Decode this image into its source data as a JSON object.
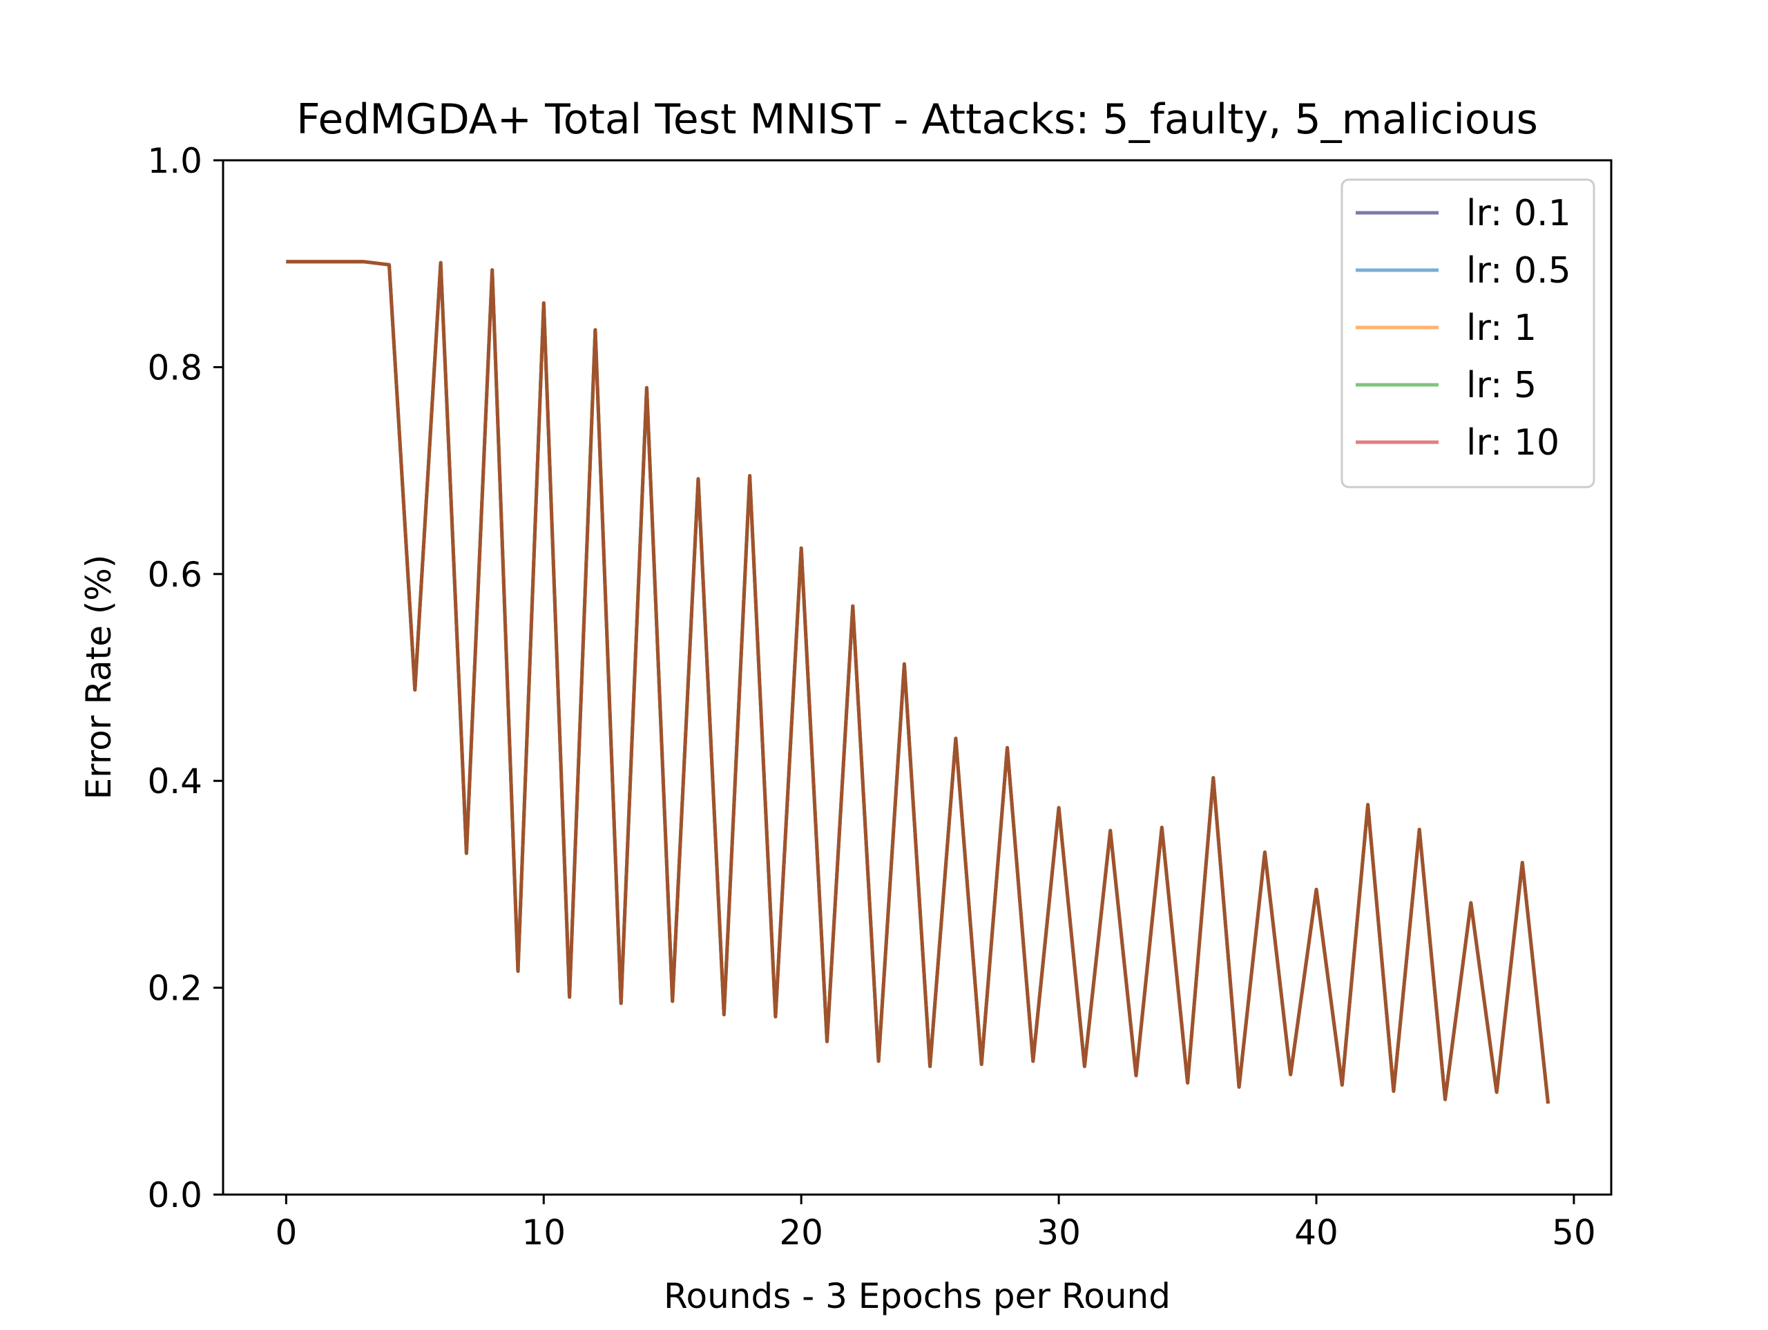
{
  "chart_data": {
    "type": "line",
    "title": "FedMGDA+ Total Test MNIST - Attacks: 5_faulty, 5_malicious",
    "xlabel": "Rounds - 3 Epochs per Round",
    "ylabel": "Error Rate (%)",
    "xlim": [
      -2.45,
      51.45
    ],
    "ylim": [
      0.0,
      1.0
    ],
    "xticks": [
      0,
      10,
      20,
      30,
      40,
      50
    ],
    "xtick_labels": [
      "0",
      "10",
      "20",
      "30",
      "40",
      "50"
    ],
    "yticks": [
      0.0,
      0.2,
      0.4,
      0.6,
      0.8,
      1.0
    ],
    "ytick_labels": [
      "0.0",
      "0.2",
      "0.4",
      "0.6",
      "0.8",
      "1.0"
    ],
    "grid": false,
    "legend_position": "top-right",
    "x": [
      0,
      1,
      2,
      3,
      4,
      5,
      6,
      7,
      8,
      9,
      10,
      11,
      12,
      13,
      14,
      15,
      16,
      17,
      18,
      19,
      20,
      21,
      22,
      23,
      24,
      25,
      26,
      27,
      28,
      29,
      30,
      31,
      32,
      33,
      34,
      35,
      36,
      37,
      38,
      39,
      40,
      41,
      42,
      43,
      44,
      45,
      46,
      47,
      48,
      49
    ],
    "series": [
      {
        "name": "lr: 0.1",
        "color": "#7b7ba8",
        "values": [
          0.902,
          0.902,
          0.902,
          0.902,
          0.899,
          0.488,
          0.901,
          0.33,
          0.894,
          0.216,
          0.862,
          0.191,
          0.836,
          0.185,
          0.78,
          0.187,
          0.692,
          0.174,
          0.695,
          0.172,
          0.625,
          0.148,
          0.569,
          0.129,
          0.513,
          0.124,
          0.441,
          0.126,
          0.432,
          0.129,
          0.374,
          0.124,
          0.352,
          0.115,
          0.355,
          0.108,
          0.403,
          0.104,
          0.331,
          0.116,
          0.295,
          0.106,
          0.377,
          0.1,
          0.353,
          0.092,
          0.282,
          0.099,
          0.321,
          0.088
        ]
      },
      {
        "name": "lr: 0.5",
        "color": "#78aed4",
        "values": [
          0.902,
          0.902,
          0.902,
          0.902,
          0.899,
          0.488,
          0.901,
          0.33,
          0.894,
          0.216,
          0.862,
          0.191,
          0.836,
          0.185,
          0.78,
          0.187,
          0.692,
          0.174,
          0.695,
          0.172,
          0.625,
          0.148,
          0.569,
          0.129,
          0.513,
          0.124,
          0.441,
          0.126,
          0.432,
          0.129,
          0.374,
          0.124,
          0.352,
          0.115,
          0.355,
          0.108,
          0.403,
          0.104,
          0.331,
          0.116,
          0.295,
          0.106,
          0.377,
          0.1,
          0.353,
          0.092,
          0.282,
          0.099,
          0.321,
          0.088
        ]
      },
      {
        "name": "lr: 1",
        "color": "#ffb26e",
        "values": [
          0.902,
          0.902,
          0.902,
          0.902,
          0.899,
          0.488,
          0.901,
          0.33,
          0.894,
          0.216,
          0.862,
          0.191,
          0.836,
          0.185,
          0.78,
          0.187,
          0.692,
          0.174,
          0.695,
          0.172,
          0.625,
          0.148,
          0.569,
          0.129,
          0.513,
          0.124,
          0.441,
          0.126,
          0.432,
          0.129,
          0.374,
          0.124,
          0.352,
          0.115,
          0.355,
          0.108,
          0.403,
          0.104,
          0.331,
          0.116,
          0.295,
          0.106,
          0.377,
          0.1,
          0.353,
          0.092,
          0.282,
          0.099,
          0.321,
          0.088
        ]
      },
      {
        "name": "lr: 5",
        "color": "#80c47c",
        "values": [
          0.902,
          0.902,
          0.902,
          0.902,
          0.899,
          0.488,
          0.901,
          0.33,
          0.894,
          0.216,
          0.862,
          0.191,
          0.836,
          0.185,
          0.78,
          0.187,
          0.692,
          0.174,
          0.695,
          0.172,
          0.625,
          0.148,
          0.569,
          0.129,
          0.513,
          0.124,
          0.441,
          0.126,
          0.432,
          0.129,
          0.374,
          0.124,
          0.352,
          0.115,
          0.355,
          0.108,
          0.403,
          0.104,
          0.331,
          0.116,
          0.295,
          0.106,
          0.377,
          0.1,
          0.353,
          0.092,
          0.282,
          0.099,
          0.321,
          0.088
        ]
      },
      {
        "name": "lr: 10",
        "color": "#e07f7f",
        "values": [
          0.902,
          0.902,
          0.902,
          0.902,
          0.899,
          0.488,
          0.901,
          0.33,
          0.894,
          0.216,
          0.862,
          0.191,
          0.836,
          0.185,
          0.78,
          0.187,
          0.692,
          0.174,
          0.695,
          0.172,
          0.625,
          0.148,
          0.569,
          0.129,
          0.513,
          0.124,
          0.441,
          0.126,
          0.432,
          0.129,
          0.374,
          0.124,
          0.352,
          0.115,
          0.355,
          0.108,
          0.403,
          0.104,
          0.331,
          0.116,
          0.295,
          0.106,
          0.377,
          0.1,
          0.353,
          0.092,
          0.282,
          0.099,
          0.321,
          0.088
        ]
      }
    ],
    "overlap_line_color": "#a0522d"
  }
}
